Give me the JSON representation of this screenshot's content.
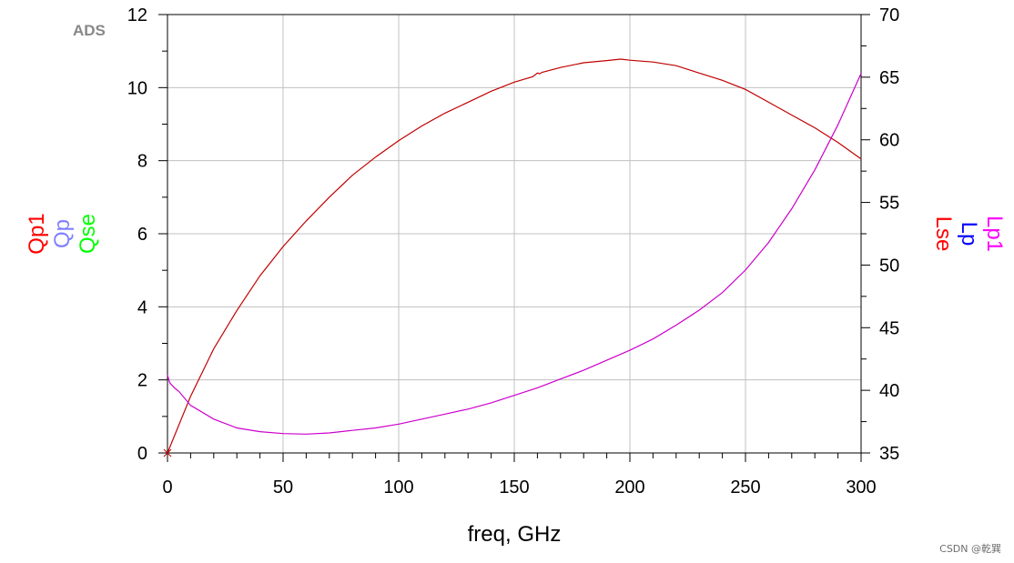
{
  "logo": {
    "text": "ADS",
    "color": "#888888"
  },
  "watermark": "CSDN @乾巽",
  "chart_data": {
    "type": "line",
    "xlabel": "freq, GHz",
    "xlim": [
      0,
      300
    ],
    "x_ticks": [
      0,
      50,
      100,
      150,
      200,
      250,
      300
    ],
    "y_left": {
      "lim": [
        0,
        12
      ],
      "ticks": [
        0,
        2,
        4,
        6,
        8,
        10,
        12
      ],
      "labels": [
        {
          "text": "Qp1",
          "color": "#ff0000"
        },
        {
          "text": "Qp",
          "color": "#8080ff"
        },
        {
          "text": "Qse",
          "color": "#00ff00"
        }
      ]
    },
    "y_right": {
      "lim": [
        35,
        70
      ],
      "ticks": [
        35,
        40,
        45,
        50,
        55,
        60,
        65,
        70
      ],
      "labels": [
        {
          "text": "Lp1",
          "color": "#ff00ff"
        },
        {
          "text": "Lp",
          "color": "#0000ff"
        },
        {
          "text": "Lse",
          "color": "#ff0000"
        }
      ]
    },
    "grid": true,
    "series": [
      {
        "axis": "left",
        "color": "#c00000",
        "x": [
          0,
          10,
          20,
          30,
          40,
          50,
          60,
          70,
          80,
          90,
          100,
          110,
          120,
          130,
          140,
          150,
          158,
          160,
          161,
          162,
          170,
          180,
          190,
          196,
          200,
          210,
          220,
          230,
          240,
          250,
          260,
          270,
          280,
          290,
          300
        ],
        "values": [
          0,
          1.55,
          2.85,
          3.9,
          4.85,
          5.65,
          6.35,
          7.0,
          7.6,
          8.1,
          8.55,
          8.95,
          9.3,
          9.6,
          9.9,
          10.15,
          10.3,
          10.4,
          10.38,
          10.42,
          10.55,
          10.68,
          10.74,
          10.78,
          10.75,
          10.7,
          10.6,
          10.4,
          10.2,
          9.95,
          9.6,
          9.25,
          8.9,
          8.5,
          8.05
        ]
      },
      {
        "axis": "right",
        "color": "#cc00cc",
        "x": [
          0,
          1,
          3,
          5,
          10,
          20,
          30,
          40,
          50,
          60,
          70,
          80,
          90,
          100,
          110,
          120,
          130,
          140,
          150,
          160,
          170,
          180,
          190,
          200,
          210,
          220,
          230,
          240,
          250,
          260,
          270,
          280,
          290,
          300
        ],
        "values": [
          41.2,
          40.6,
          40.2,
          39.9,
          38.8,
          37.7,
          37.0,
          36.7,
          36.55,
          36.5,
          36.6,
          36.8,
          37.0,
          37.3,
          37.7,
          38.1,
          38.5,
          39.0,
          39.6,
          40.2,
          40.9,
          41.6,
          42.4,
          43.2,
          44.1,
          45.2,
          46.4,
          47.8,
          49.6,
          51.8,
          54.5,
          57.6,
          61.2,
          65.3
        ]
      }
    ]
  }
}
